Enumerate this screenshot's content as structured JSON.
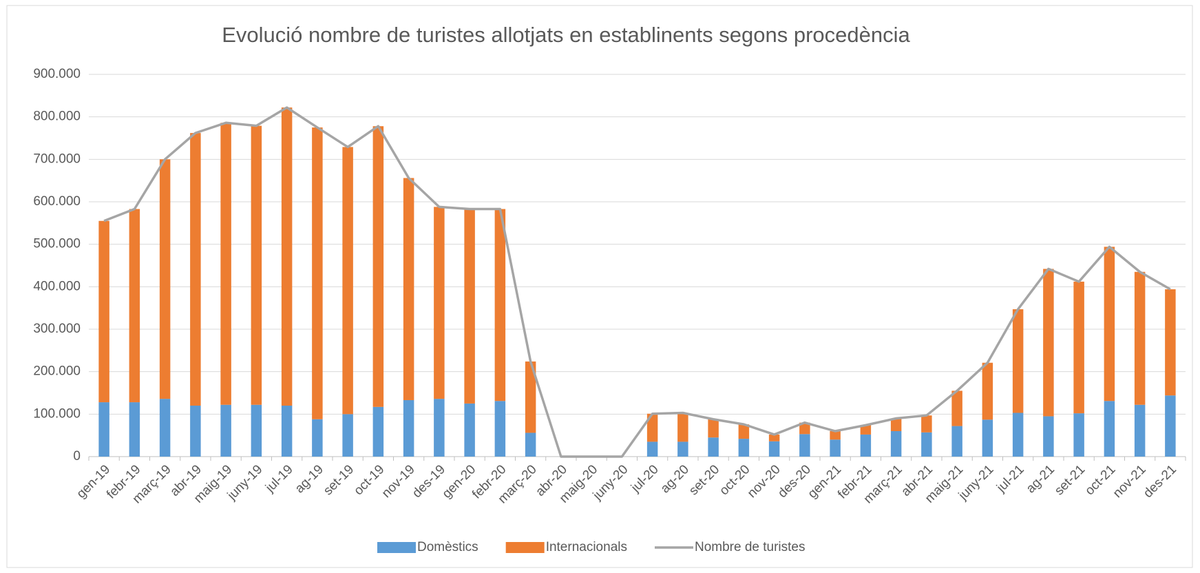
{
  "chart_data": {
    "type": "bar",
    "title": "Evolució nombre de turistes allotjats en establinents segons procedència",
    "categories": [
      "gen-19",
      "febr-19",
      "març-19",
      "abr-19",
      "maig-19",
      "juny-19",
      "jul-19",
      "ag-19",
      "set-19",
      "oct-19",
      "nov-19",
      "des-19",
      "gen-20",
      "febr-20",
      "març-20",
      "abr-20",
      "maig-20",
      "juny-20",
      "jul-20",
      "ag-20",
      "set-20",
      "oct-20",
      "nov-20",
      "des-20",
      "gen-21",
      "febr-21",
      "març-21",
      "abr-21",
      "maig-21",
      "juny-21",
      "jul-21",
      "ag-21",
      "set-21",
      "oct-21",
      "nov-21",
      "des-21"
    ],
    "series": [
      {
        "name": "Domèstics",
        "color": "#5b9bd5",
        "type": "bar",
        "stack": "total",
        "values": [
          128000,
          128000,
          136000,
          120000,
          122000,
          122000,
          120000,
          88000,
          100000,
          117000,
          133000,
          136000,
          125000,
          131000,
          56000,
          0,
          0,
          0,
          35000,
          35000,
          45000,
          42000,
          36000,
          53000,
          40000,
          52000,
          60000,
          57000,
          72000,
          87000,
          103000,
          95000,
          102000,
          131000,
          122000,
          144000
        ]
      },
      {
        "name": "Internacionals",
        "color": "#ed7d31",
        "type": "bar",
        "stack": "total",
        "values": [
          427000,
          455000,
          564000,
          642000,
          664000,
          657000,
          702000,
          687000,
          629000,
          661000,
          523000,
          452000,
          458000,
          452000,
          168000,
          0,
          0,
          0,
          66000,
          68000,
          43000,
          34000,
          16000,
          27000,
          20000,
          22000,
          30000,
          40000,
          83000,
          134000,
          244000,
          347000,
          310000,
          363000,
          313000,
          250000
        ]
      },
      {
        "name": "Nombre de turistes",
        "color": "#a5a5a5",
        "type": "line",
        "values": [
          555000,
          583000,
          700000,
          762000,
          786000,
          779000,
          822000,
          775000,
          729000,
          778000,
          656000,
          588000,
          583000,
          583000,
          224000,
          0,
          0,
          0,
          101000,
          103000,
          88000,
          76000,
          52000,
          80000,
          60000,
          74000,
          90000,
          97000,
          155000,
          221000,
          347000,
          442000,
          412000,
          494000,
          435000,
          394000
        ]
      }
    ],
    "ylim": [
      0,
      900000
    ],
    "yticks": [
      0,
      {
        "value": 100000,
        "label": "100.000"
      },
      {
        "value": 200000,
        "label": "200.000"
      },
      {
        "value": 300000,
        "label": "300.000"
      },
      {
        "value": 400000,
        "label": "400.000"
      },
      {
        "value": 500000,
        "label": "500.000"
      },
      {
        "value": 600000,
        "label": "600.000"
      },
      {
        "value": 700000,
        "label": "700.000"
      },
      {
        "value": 800000,
        "label": "800.000"
      },
      {
        "value": 900000,
        "label": "900.000"
      }
    ],
    "grid": true,
    "legend": "bottom"
  }
}
